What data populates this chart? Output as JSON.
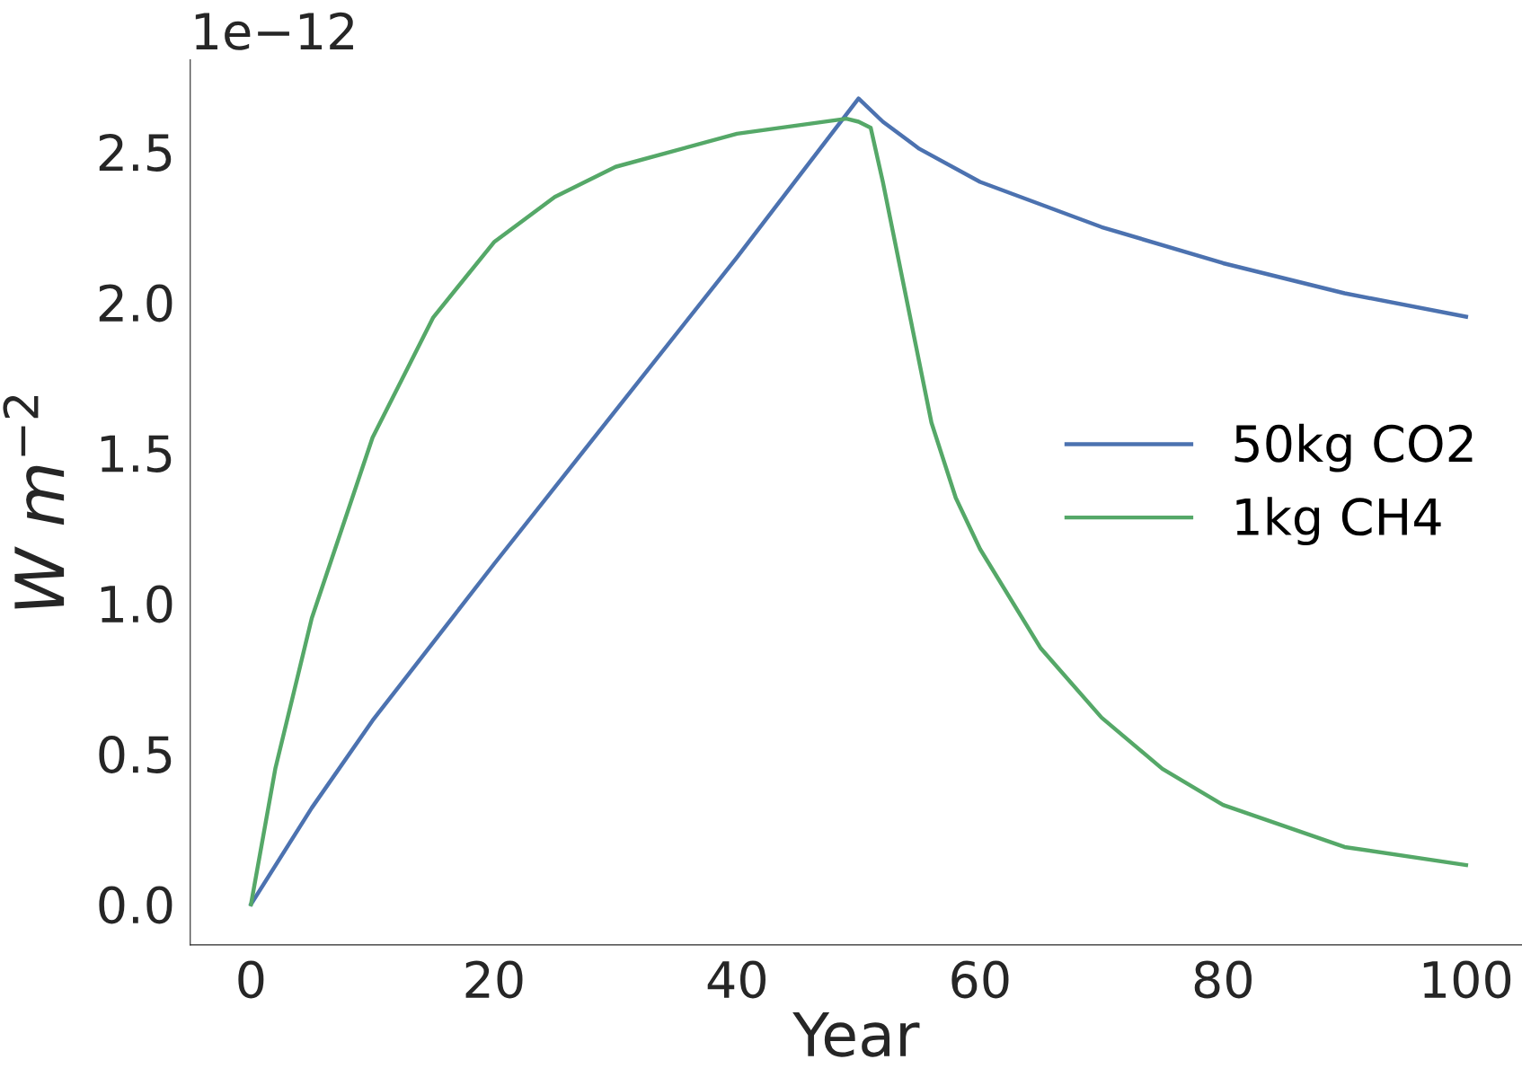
{
  "chart_data": {
    "type": "line",
    "xlabel": "Year",
    "ylabel": "W m$^{−2}$",
    "annotations": [
      "1e−12"
    ],
    "xlim": [
      -5,
      104.6
    ],
    "ylim": [
      -0.135,
      2.806
    ],
    "xticks": [
      0,
      20,
      40,
      60,
      80,
      100
    ],
    "yticks": [
      {
        "value": 0,
        "label": "0.0"
      },
      0.5,
      {
        "value": 1,
        "label": "1.0"
      },
      1.5,
      {
        "value": 2,
        "label": "2.0"
      },
      2.5
    ],
    "grid": false,
    "legend": "right",
    "line_style": "solid",
    "marker": "none",
    "series": [
      {
        "name": "50kg CO2",
        "color": "#4c72b0",
        "x": [
          0,
          5,
          10,
          20,
          30,
          40,
          50,
          52,
          55,
          60,
          70,
          80,
          90,
          100
        ],
        "values": [
          0,
          0.32,
          0.61,
          1.13,
          1.64,
          2.15,
          2.677,
          2.6,
          2.51,
          2.4,
          2.25,
          2.13,
          2.03,
          1.952
        ]
      },
      {
        "name": "1kg CH4",
        "color": "#55a868",
        "x": [
          0,
          2,
          5,
          10,
          15,
          20,
          25,
          30,
          40,
          49,
          50,
          51,
          52,
          54,
          56,
          58,
          60,
          65,
          70,
          75,
          80,
          90,
          100
        ],
        "values": [
          0,
          0.45,
          0.95,
          1.55,
          1.95,
          2.2,
          2.35,
          2.45,
          2.56,
          2.61,
          2.6,
          2.58,
          2.4,
          2.0,
          1.6,
          1.35,
          1.18,
          0.85,
          0.62,
          0.45,
          0.33,
          0.19,
          0.13
        ]
      }
    ]
  }
}
